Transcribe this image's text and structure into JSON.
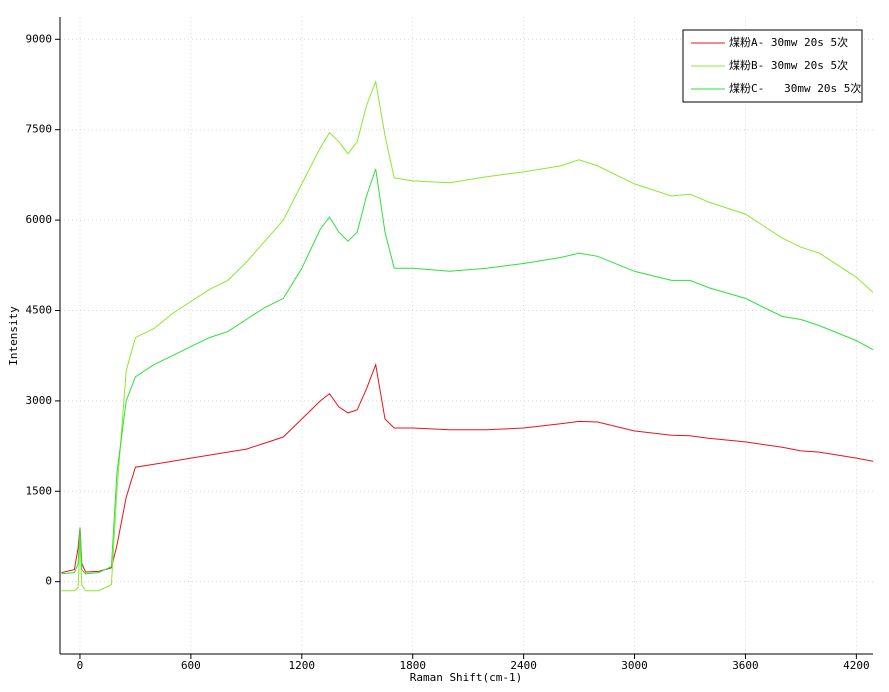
{
  "chart_data": {
    "type": "line",
    "x_label": "Raman Shift(cm-1)",
    "y_label": "Intensity",
    "x": [
      -100,
      -30,
      -10,
      0,
      10,
      30,
      100,
      170,
      200,
      250,
      300,
      400,
      500,
      600,
      700,
      800,
      900,
      1000,
      1100,
      1200,
      1300,
      1350,
      1400,
      1450,
      1500,
      1550,
      1600,
      1650,
      1700,
      1800,
      2000,
      2200,
      2400,
      2600,
      2700,
      2800,
      3000,
      3200,
      3300,
      3400,
      3600,
      3800,
      3900,
      4000,
      4200,
      4290
    ],
    "series": [
      {
        "name": "煤粉A- 30mw 20s 5次",
        "color": "#e8141c",
        "values": [
          150,
          200,
          560,
          900,
          300,
          160,
          170,
          230,
          600,
          1400,
          1900,
          1950,
          2000,
          2050,
          2100,
          2150,
          2200,
          2300,
          2400,
          2700,
          3000,
          3120,
          2900,
          2800,
          2850,
          3200,
          3600,
          2700,
          2550,
          2550,
          2520,
          2520,
          2550,
          2620,
          2660,
          2650,
          2500,
          2430,
          2420,
          2380,
          2320,
          2230,
          2170,
          2150,
          2050,
          2000
        ]
      },
      {
        "name": "煤粉B- 30mw 20s 5次",
        "color": "#8ce830",
        "values": [
          -150,
          -150,
          -100,
          700,
          -50,
          -150,
          -150,
          -50,
          1500,
          3500,
          4050,
          4200,
          4450,
          4650,
          4850,
          5000,
          5300,
          5650,
          6000,
          6600,
          7200,
          7450,
          7300,
          7100,
          7300,
          7900,
          8300,
          7400,
          6700,
          6650,
          6620,
          6720,
          6800,
          6900,
          7000,
          6900,
          6600,
          6400,
          6430,
          6300,
          6100,
          5700,
          5550,
          5450,
          5050,
          4800
        ]
      },
      {
        "name": "煤粉C-   30mw 20s 5次",
        "color": "#2ee03c",
        "values": [
          130,
          150,
          300,
          900,
          200,
          130,
          150,
          250,
          1800,
          3000,
          3400,
          3600,
          3750,
          3900,
          4050,
          4150,
          4350,
          4550,
          4700,
          5200,
          5850,
          6050,
          5800,
          5650,
          5800,
          6400,
          6850,
          5800,
          5200,
          5200,
          5150,
          5200,
          5280,
          5380,
          5450,
          5400,
          5150,
          5000,
          5000,
          4880,
          4700,
          4400,
          4350,
          4250,
          4000,
          3850
        ]
      }
    ],
    "xlim": [
      -108,
      4290
    ],
    "xticks": [
      0,
      600,
      1200,
      1800,
      2400,
      3000,
      3600,
      4200
    ],
    "ylim": [
      -1200,
      9370
    ],
    "yticks": [
      0,
      1500,
      3000,
      4500,
      6000,
      7500,
      9000
    ],
    "grid": true,
    "legend": "upper right"
  }
}
